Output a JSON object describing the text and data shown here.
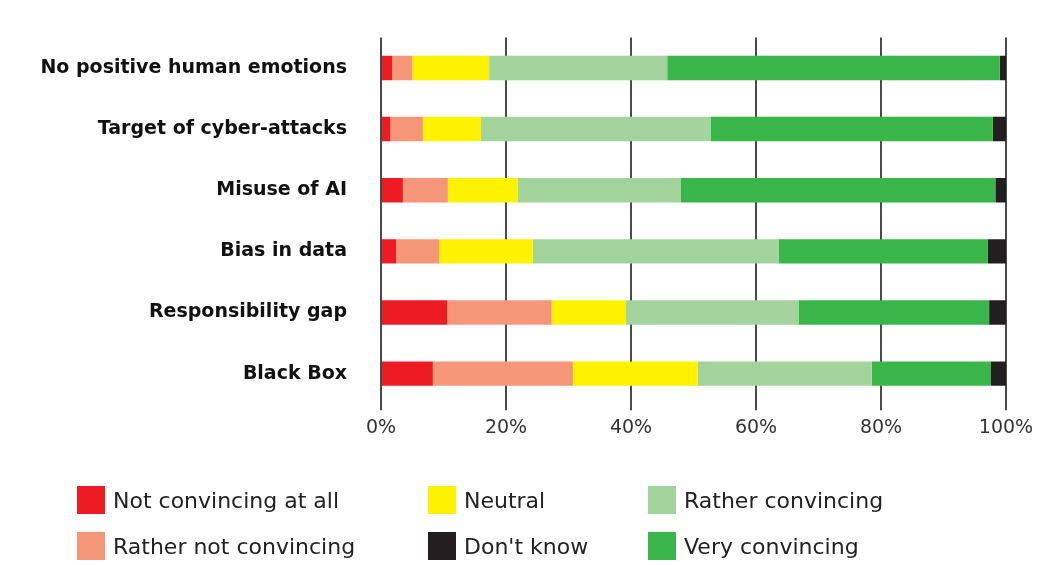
{
  "chart_data": {
    "type": "bar",
    "orientation": "horizontal",
    "stacked": true,
    "categories": [
      "No positive human emotions",
      "Target of cyber-attacks",
      "Misuse of AI",
      "Bias in data",
      "Responsibility gap",
      "Black Box"
    ],
    "series": [
      {
        "name": "Not convincing at all",
        "color": "#ed1c24",
        "values": [
          1.8,
          1.5,
          3.5,
          2.4,
          10.6,
          8.3
        ]
      },
      {
        "name": "Rather not convincing",
        "color": "#f49677",
        "values": [
          3.2,
          5.2,
          7.2,
          6.9,
          16.7,
          22.4
        ]
      },
      {
        "name": "Neutral",
        "color": "#fff200",
        "values": [
          12.3,
          9.3,
          11.2,
          15.0,
          11.9,
          20.0
        ]
      },
      {
        "name": "Rather convincing",
        "color": "#a3d39c",
        "values": [
          28.5,
          36.8,
          26.1,
          39.3,
          27.6,
          27.8
        ]
      },
      {
        "name": "Very convincing",
        "color": "#39b54a",
        "values": [
          53.2,
          45.1,
          50.3,
          33.5,
          30.5,
          19.1
        ]
      },
      {
        "name": "Don't know",
        "color": "#231f20",
        "values": [
          1.0,
          2.1,
          1.7,
          2.9,
          2.7,
          2.4
        ]
      }
    ],
    "xlim": [
      0,
      100
    ],
    "xticks": [
      {
        "value": 0,
        "label": "0%"
      },
      {
        "value": 20,
        "label": "20%"
      },
      {
        "value": 40,
        "label": "40%"
      },
      {
        "value": 60,
        "label": "60%"
      },
      {
        "value": 80,
        "label": "80%"
      },
      {
        "value": 100,
        "label": "100%"
      }
    ],
    "grid": "x",
    "legend": "bottom"
  }
}
